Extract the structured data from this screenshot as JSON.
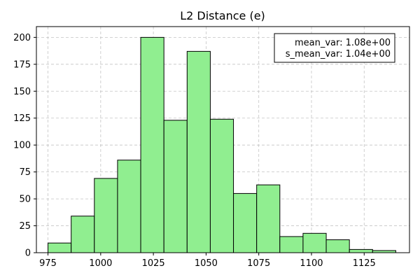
{
  "chart_data": {
    "type": "bar",
    "title": "L2 Distance (e)",
    "xlabel": "",
    "ylabel": "",
    "xlim": [
      969.5,
      1146.5
    ],
    "ylim": [
      0,
      210
    ],
    "xticks": [
      975,
      1000,
      1025,
      1050,
      1075,
      1100,
      1125
    ],
    "yticks": [
      0,
      25,
      50,
      75,
      100,
      125,
      150,
      175,
      200
    ],
    "grid": true,
    "bar_color": "#90ee90",
    "edge_color": "#000000",
    "bins": [
      {
        "x0": 975.0,
        "x1": 986.0,
        "count": 9
      },
      {
        "x0": 986.0,
        "x1": 997.0,
        "count": 34
      },
      {
        "x0": 997.0,
        "x1": 1008.0,
        "count": 69
      },
      {
        "x0": 1008.0,
        "x1": 1019.0,
        "count": 86
      },
      {
        "x0": 1019.0,
        "x1": 1030.0,
        "count": 200
      },
      {
        "x0": 1030.0,
        "x1": 1041.0,
        "count": 123
      },
      {
        "x0": 1041.0,
        "x1": 1052.0,
        "count": 187
      },
      {
        "x0": 1052.0,
        "x1": 1063.0,
        "count": 124
      },
      {
        "x0": 1063.0,
        "x1": 1074.0,
        "count": 55
      },
      {
        "x0": 1074.0,
        "x1": 1085.0,
        "count": 63
      },
      {
        "x0": 1085.0,
        "x1": 1096.0,
        "count": 15
      },
      {
        "x0": 1096.0,
        "x1": 1107.0,
        "count": 18
      },
      {
        "x0": 1107.0,
        "x1": 1118.0,
        "count": 12
      },
      {
        "x0": 1118.0,
        "x1": 1129.0,
        "count": 3
      },
      {
        "x0": 1129.0,
        "x1": 1140.0,
        "count": 2
      }
    ],
    "annotation": {
      "lines": [
        "mean_var: 1.08e+00",
        "s_mean_var: 1.04e+00"
      ],
      "placement": "top-right"
    }
  }
}
